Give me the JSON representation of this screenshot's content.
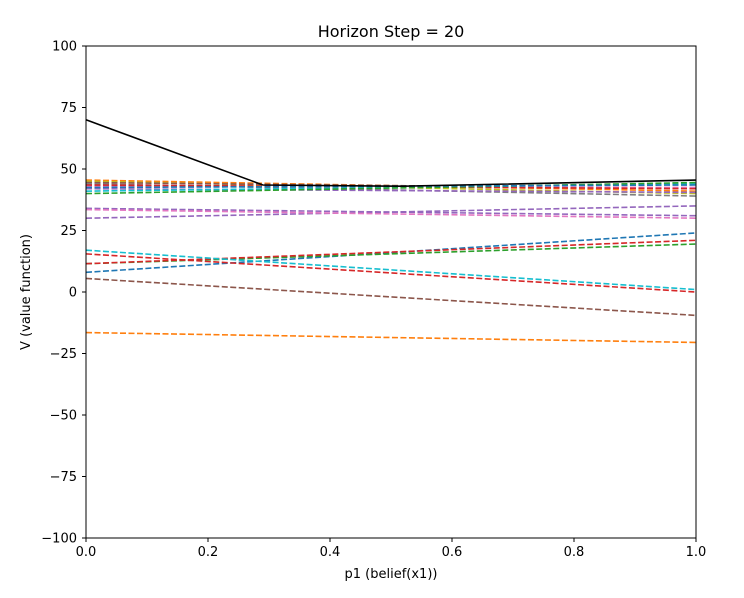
{
  "chart_data": {
    "type": "line",
    "title": "Horizon Step = 20",
    "xlabel": "p1 (belief(x1))",
    "ylabel": "V (value function)",
    "xlim": [
      0.0,
      1.0
    ],
    "ylim": [
      -100,
      100
    ],
    "xticks": [
      "0.0",
      "0.2",
      "0.4",
      "0.6",
      "0.8",
      "1.0"
    ],
    "yticks": [
      "100",
      "75",
      "50",
      "25",
      "0",
      "−25",
      "−50",
      "−75",
      "−100"
    ],
    "grid": false,
    "legend": "none",
    "series": [
      {
        "style": "dashed",
        "color": "#1f77b4",
        "x": [
          0,
          1
        ],
        "y": [
          8,
          24
        ]
      },
      {
        "style": "dashed",
        "color": "#ff7f0e",
        "x": [
          0,
          1
        ],
        "y": [
          -16.5,
          -20.5
        ]
      },
      {
        "style": "dashed",
        "color": "#2ca02c",
        "x": [
          0,
          1
        ],
        "y": [
          11.5,
          19.5
        ]
      },
      {
        "style": "dashed",
        "color": "#d62728",
        "x": [
          0,
          1
        ],
        "y": [
          15.5,
          0
        ]
      },
      {
        "style": "dashed",
        "color": "#d62728",
        "x": [
          0,
          1
        ],
        "y": [
          11.5,
          21
        ]
      },
      {
        "style": "dashed",
        "color": "#17becf",
        "x": [
          0,
          1
        ],
        "y": [
          17,
          1
        ]
      },
      {
        "style": "dashed",
        "color": "#8c564b",
        "x": [
          0,
          1
        ],
        "y": [
          5.5,
          -9.5
        ]
      },
      {
        "style": "dashed",
        "color": "#9467bd",
        "x": [
          0,
          1
        ],
        "y": [
          30,
          35
        ]
      },
      {
        "style": "dashed",
        "color": "#9467bd",
        "x": [
          0,
          1
        ],
        "y": [
          34,
          31
        ]
      },
      {
        "style": "dashed",
        "color": "#e377c2",
        "x": [
          0,
          1
        ],
        "y": [
          33.5,
          30
        ]
      },
      {
        "style": "dashed",
        "color": "#ff7f0e",
        "x": [
          0,
          1
        ],
        "y": [
          45.5,
          41
        ]
      },
      {
        "style": "dashed",
        "color": "#bcbd22",
        "x": [
          0,
          1
        ],
        "y": [
          45,
          40
        ]
      },
      {
        "style": "dashed",
        "color": "#8c564b",
        "x": [
          0,
          1
        ],
        "y": [
          44.5,
          42
        ]
      },
      {
        "style": "dashed",
        "color": "#7f7f7f",
        "x": [
          0,
          1
        ],
        "y": [
          44,
          39
        ]
      },
      {
        "style": "dashed",
        "color": "#e377c2",
        "x": [
          0,
          1
        ],
        "y": [
          43,
          42.5
        ]
      },
      {
        "style": "dashed",
        "color": "#9467bd",
        "x": [
          0,
          1
        ],
        "y": [
          42,
          40.5
        ]
      },
      {
        "style": "dashed",
        "color": "#d62728",
        "x": [
          0,
          1
        ],
        "y": [
          43.5,
          42
        ]
      },
      {
        "style": "dashed",
        "color": "#17becf",
        "x": [
          0,
          1
        ],
        "y": [
          41,
          44
        ]
      },
      {
        "style": "dashed",
        "color": "#2ca02c",
        "x": [
          0,
          1
        ],
        "y": [
          40,
          44.5
        ]
      },
      {
        "style": "dashed",
        "color": "#1f77b4",
        "x": [
          0,
          1
        ],
        "y": [
          42.5,
          43.5
        ]
      },
      {
        "style": "solid",
        "color": "#000000",
        "x": [
          0,
          0.29,
          0.52,
          1.0
        ],
        "y": [
          70,
          43.5,
          43,
          45.5
        ]
      }
    ]
  }
}
